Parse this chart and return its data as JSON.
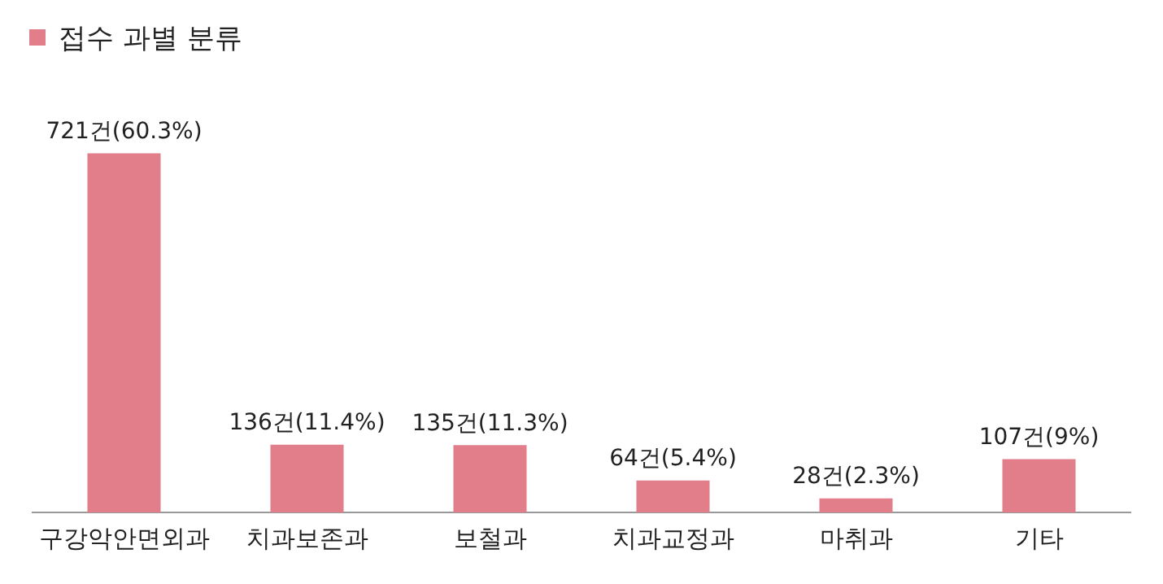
{
  "chart_data": {
    "type": "bar",
    "title": "접수 과별 분류",
    "categories": [
      "구강악안면외과",
      "치과보존과",
      "보철과",
      "치과교정과",
      "마취과",
      "기타"
    ],
    "values": [
      721,
      136,
      135,
      64,
      28,
      107
    ],
    "value_labels": [
      "721건(60.3%)",
      "136건(11.4%)",
      "135건(11.3%)",
      "64건(5.4%)",
      "28건(2.3%)",
      "107건(9%)"
    ],
    "color": "#e27d8a",
    "legend": false,
    "grid": false
  }
}
